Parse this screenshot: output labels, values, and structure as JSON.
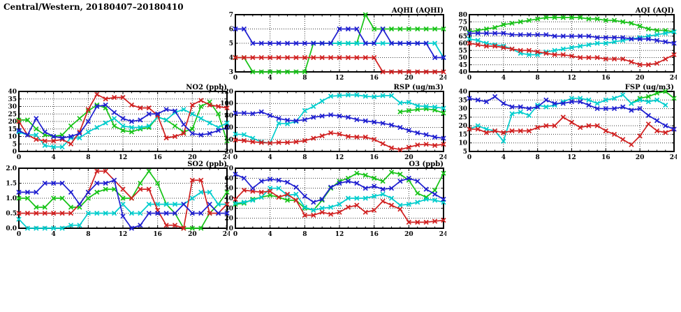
{
  "page_title": "Central/Western, 20180407–20180410",
  "colors": {
    "blue": "#1f1fd0",
    "red": "#d02020",
    "green": "#17c317",
    "cyan": "#00cdcd"
  },
  "chart_data": [
    {
      "id": "aqhi",
      "type": "line",
      "title": "AQHI (AQHI)",
      "xlim": [
        0,
        24
      ],
      "xticks": [
        0,
        4,
        8,
        12,
        16,
        20,
        24
      ],
      "ylim": [
        3,
        7
      ],
      "yticks": [
        3,
        4,
        5,
        6,
        7
      ],
      "ytick_labels": [
        "3",
        "4",
        "5",
        "6",
        "7"
      ],
      "grid": true,
      "legend": "none",
      "series": [
        {
          "name": "green",
          "color": "green",
          "y": [
            4,
            4,
            3,
            3,
            3,
            3,
            3,
            3,
            3,
            5,
            5,
            5,
            5,
            5,
            5,
            7,
            6,
            6,
            6,
            6,
            6,
            6,
            6,
            6,
            6
          ]
        },
        {
          "name": "cyan",
          "color": "cyan",
          "x": [
            9,
            10,
            11,
            12,
            13,
            14,
            15,
            16,
            17,
            18,
            19,
            20,
            21,
            22,
            23,
            24
          ],
          "y": [
            5,
            5,
            5,
            5,
            5,
            5,
            5,
            5,
            5,
            5,
            5,
            5,
            5,
            5,
            5,
            4
          ]
        },
        {
          "name": "red",
          "color": "red",
          "y": [
            4,
            4,
            4,
            4,
            4,
            4,
            4,
            4,
            4,
            4,
            4,
            4,
            4,
            4,
            4,
            4,
            4,
            3,
            3,
            3,
            3,
            3,
            3,
            3,
            3
          ]
        },
        {
          "name": "blue",
          "color": "blue",
          "y": [
            6,
            6,
            5,
            5,
            5,
            5,
            5,
            5,
            5,
            5,
            5,
            5,
            6,
            6,
            6,
            5,
            5,
            6,
            5,
            5,
            5,
            5,
            5,
            4,
            4
          ]
        }
      ]
    },
    {
      "id": "aqi",
      "type": "line",
      "title": "AQI (AQI)",
      "xlim": [
        0,
        24
      ],
      "xticks": [
        0,
        4,
        8,
        12,
        16,
        20,
        24
      ],
      "ylim": [
        40,
        80
      ],
      "yticks": [
        40,
        45,
        50,
        55,
        60,
        65,
        70,
        75,
        80
      ],
      "ytick_labels": [
        "40",
        "45",
        "50",
        "55",
        "60",
        "65",
        "70",
        "75",
        "80"
      ],
      "grid": true,
      "legend": "none",
      "series": [
        {
          "name": "green",
          "color": "green",
          "y": [
            68,
            69,
            70,
            71,
            73,
            74,
            75,
            76,
            77,
            78,
            78,
            78,
            78,
            78,
            77,
            77,
            76,
            76,
            75,
            74,
            72,
            70,
            69,
            69,
            68
          ]
        },
        {
          "name": "cyan",
          "color": "cyan",
          "y": [
            63,
            62,
            60,
            59,
            58,
            56,
            53,
            52,
            52,
            54,
            55,
            56,
            57,
            58,
            59,
            60,
            60,
            61,
            62,
            63,
            64,
            65,
            66,
            67,
            68
          ]
        },
        {
          "name": "red",
          "color": "red",
          "y": [
            60,
            59,
            58,
            58,
            57,
            56,
            55,
            55,
            54,
            53,
            52,
            52,
            51,
            50,
            50,
            50,
            49,
            49,
            49,
            47,
            45,
            45,
            46,
            49,
            52
          ]
        },
        {
          "name": "blue",
          "color": "blue",
          "y": [
            67,
            67,
            67,
            67,
            67,
            66,
            66,
            66,
            66,
            66,
            65,
            65,
            65,
            65,
            65,
            64,
            64,
            64,
            64,
            63,
            63,
            63,
            62,
            61,
            60
          ]
        }
      ]
    },
    {
      "id": "no2",
      "type": "line",
      "title": "NO2 (ppb)",
      "xlim": [
        0,
        24
      ],
      "xticks": [
        0,
        4,
        8,
        12,
        16,
        20,
        24
      ],
      "ylim": [
        0,
        40
      ],
      "yticks": [
        0,
        5,
        10,
        15,
        20,
        25,
        30,
        35,
        40
      ],
      "ytick_labels": [
        "0",
        "5",
        "10",
        "15",
        "20",
        "25",
        "30",
        "35",
        "40"
      ],
      "grid": true,
      "legend": "none",
      "series": [
        {
          "name": "green",
          "color": "green",
          "y": [
            21,
            21,
            15,
            11,
            10,
            11,
            17,
            22,
            27,
            31,
            29,
            17,
            14,
            13,
            15,
            16,
            23,
            21,
            17,
            13,
            15,
            30,
            33,
            25,
            7
          ]
        },
        {
          "name": "cyan",
          "color": "cyan",
          "y": [
            13,
            11,
            11,
            4,
            3,
            3,
            9,
            9,
            13,
            16,
            19,
            22,
            17,
            16,
            16,
            17,
            23,
            21,
            26,
            28,
            25,
            22,
            19,
            16,
            19
          ]
        },
        {
          "name": "red",
          "color": "red",
          "y": [
            20,
            11,
            8,
            7,
            7,
            8,
            5,
            13,
            28,
            38,
            35,
            36,
            36,
            31,
            29,
            29,
            24,
            9,
            10,
            12,
            31,
            34,
            31,
            30,
            29
          ]
        },
        {
          "name": "blue",
          "color": "blue",
          "y": [
            14,
            11,
            22,
            13,
            10,
            9,
            10,
            12,
            20,
            30,
            31,
            26,
            22,
            20,
            21,
            25,
            25,
            28,
            27,
            18,
            12,
            11,
            12,
            14,
            16
          ]
        }
      ]
    },
    {
      "id": "rsp",
      "type": "line",
      "title": "RSP (ug/m3)",
      "xlim": [
        0,
        24
      ],
      "xticks": [
        0,
        4,
        8,
        12,
        16,
        20,
        24
      ],
      "ylim": [
        20,
        120
      ],
      "yticks": [
        20,
        40,
        60,
        80,
        100,
        120
      ],
      "ytick_labels": [
        "20",
        "40",
        "60",
        "80",
        "100",
        "120"
      ],
      "grid": true,
      "legend": "none",
      "series": [
        {
          "name": "green",
          "color": "green",
          "x": [
            19,
            20,
            21,
            22,
            23,
            24
          ],
          "y": [
            86,
            88,
            90,
            91,
            89,
            84
          ]
        },
        {
          "name": "cyan",
          "color": "cyan",
          "y": [
            49,
            48,
            42,
            36,
            34,
            67,
            66,
            70,
            88,
            95,
            104,
            112,
            113,
            114,
            114,
            112,
            111,
            113,
            113,
            101,
            102,
            96,
            95,
            94,
            92
          ]
        },
        {
          "name": "red",
          "color": "red",
          "y": [
            39,
            38,
            36,
            35,
            34,
            35,
            35,
            36,
            38,
            42,
            46,
            51,
            49,
            45,
            44,
            44,
            40,
            33,
            26,
            23,
            27,
            31,
            32,
            30,
            32
          ]
        },
        {
          "name": "blue",
          "color": "blue",
          "y": [
            84,
            84,
            83,
            86,
            80,
            75,
            72,
            71,
            73,
            77,
            79,
            81,
            79,
            77,
            73,
            71,
            69,
            67,
            64,
            60,
            55,
            51,
            48,
            44,
            42
          ]
        }
      ]
    },
    {
      "id": "fsp",
      "type": "line",
      "title": "FSP (ug/m3)",
      "xlim": [
        0,
        24
      ],
      "xticks": [
        0,
        4,
        8,
        12,
        16,
        20,
        24
      ],
      "ylim": [
        5,
        40
      ],
      "yticks": [
        5,
        10,
        15,
        20,
        25,
        30,
        35,
        40
      ],
      "ytick_labels": [
        "5",
        "10",
        "15",
        "20",
        "25",
        "30",
        "35",
        "40"
      ],
      "grid": true,
      "legend": "none",
      "series": [
        {
          "name": "green",
          "color": "green",
          "x": [
            19,
            20,
            21,
            22,
            23,
            24
          ],
          "y": [
            33,
            36,
            37,
            39,
            40,
            36
          ]
        },
        {
          "name": "cyan",
          "color": "cyan",
          "x": [
            0,
            1,
            2,
            3,
            4,
            5,
            6,
            7,
            8,
            9,
            10,
            11,
            12,
            13,
            14,
            15,
            16,
            17,
            18,
            19,
            20,
            21,
            22,
            23
          ],
          "y": [
            18,
            20,
            18,
            17,
            11,
            27,
            28,
            26,
            32,
            31,
            32,
            34,
            36,
            36,
            35,
            33,
            35,
            36,
            38,
            33,
            35,
            34,
            35,
            32
          ]
        },
        {
          "name": "red",
          "color": "red",
          "y": [
            18,
            18,
            16,
            17,
            16,
            17,
            17,
            17,
            19,
            20,
            20,
            25,
            22,
            19,
            20,
            20,
            17,
            15,
            12,
            9,
            14,
            21,
            17,
            16,
            18
          ]
        },
        {
          "name": "blue",
          "color": "blue",
          "y": [
            36,
            35,
            34,
            37,
            33,
            31,
            31,
            30,
            31,
            35,
            33,
            33,
            34,
            34,
            32,
            30,
            30,
            30,
            31,
            29,
            30,
            26,
            23,
            20,
            18
          ]
        }
      ]
    },
    {
      "id": "so2",
      "type": "line",
      "title": "SO2 (ppb)",
      "xlim": [
        0,
        24
      ],
      "xticks": [
        0,
        4,
        8,
        12,
        16,
        20,
        24
      ],
      "ylim": [
        0,
        2
      ],
      "yticks": [
        0,
        0.5,
        1,
        1.5,
        2
      ],
      "ytick_labels": [
        "0.0",
        "0.5",
        "1.0",
        "1.5",
        "2.0"
      ],
      "grid": true,
      "legend": "none",
      "series": [
        {
          "name": "green",
          "color": "green",
          "y": [
            1.0,
            1.0,
            0.7,
            0.7,
            1.0,
            1.0,
            0.7,
            0.7,
            1.0,
            1.2,
            1.3,
            1.3,
            1.0,
            1.0,
            1.5,
            1.9,
            1.5,
            0.8,
            0.5,
            0.0,
            0.0,
            0.0,
            0.5,
            0.8,
            1.2
          ]
        },
        {
          "name": "cyan",
          "color": "cyan",
          "y": [
            0.3,
            0.0,
            0.0,
            0.0,
            0.0,
            0.0,
            0.1,
            0.1,
            0.5,
            0.5,
            0.5,
            0.5,
            0.8,
            0.5,
            0.5,
            0.8,
            0.8,
            0.8,
            0.8,
            0.8,
            1.0,
            1.2,
            1.2,
            0.8,
            0.8
          ]
        },
        {
          "name": "red",
          "color": "red",
          "y": [
            0.5,
            0.5,
            0.5,
            0.5,
            0.5,
            0.5,
            0.5,
            0.8,
            1.2,
            1.9,
            1.9,
            1.6,
            1.3,
            1.0,
            1.3,
            1.3,
            0.6,
            0.1,
            0.1,
            0.0,
            1.6,
            1.6,
            0.5,
            0.5,
            0.8
          ]
        },
        {
          "name": "blue",
          "color": "blue",
          "y": [
            1.2,
            1.2,
            1.2,
            1.5,
            1.5,
            1.5,
            1.2,
            0.8,
            1.2,
            1.5,
            1.5,
            1.6,
            0.4,
            0.0,
            0.1,
            0.5,
            0.5,
            0.5,
            0.5,
            0.8,
            0.5,
            0.5,
            0.8,
            0.5,
            0.5
          ]
        }
      ]
    },
    {
      "id": "o3",
      "type": "line",
      "title": "O3 (ppb)",
      "xlim": [
        0,
        24
      ],
      "xticks": [
        0,
        4,
        8,
        12,
        16,
        20,
        24
      ],
      "ylim": [
        10,
        70
      ],
      "yticks": [
        10,
        20,
        30,
        40,
        50,
        60,
        70
      ],
      "ytick_labels": [
        "10",
        "20",
        "30",
        "40",
        "50",
        "60",
        "70"
      ],
      "grid": true,
      "legend": "none",
      "series": [
        {
          "name": "green",
          "color": "green",
          "y": [
            34,
            35,
            39,
            41,
            43,
            41,
            38,
            38,
            30,
            28,
            38,
            50,
            57,
            60,
            65,
            63,
            60,
            57,
            66,
            64,
            58,
            45,
            41,
            48,
            65
          ]
        },
        {
          "name": "cyan",
          "color": "cyan",
          "y": [
            35,
            36,
            38,
            41,
            50,
            50,
            43,
            44,
            31,
            28,
            30,
            31,
            34,
            40,
            40,
            40,
            42,
            44,
            40,
            33,
            34,
            36,
            39,
            38,
            36
          ]
        },
        {
          "name": "red",
          "color": "red",
          "y": [
            39,
            48,
            47,
            46,
            47,
            41,
            44,
            38,
            23,
            23,
            26,
            24,
            26,
            31,
            33,
            26,
            28,
            37,
            33,
            29,
            16,
            16,
            16,
            17,
            18
          ]
        },
        {
          "name": "blue",
          "color": "blue",
          "y": [
            64,
            60,
            50,
            57,
            59,
            58,
            56,
            51,
            42,
            36,
            39,
            51,
            55,
            57,
            55,
            50,
            52,
            49,
            50,
            57,
            60,
            57,
            49,
            44,
            39
          ]
        }
      ]
    }
  ]
}
